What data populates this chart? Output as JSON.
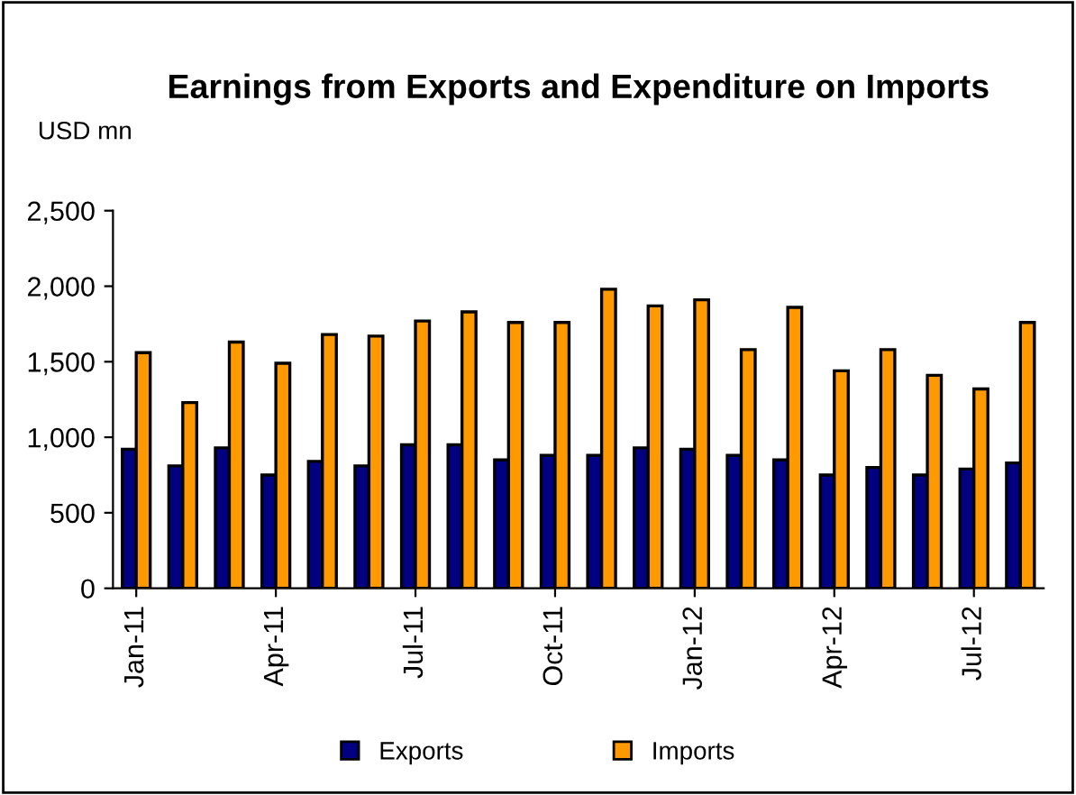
{
  "chart_data": {
    "type": "bar",
    "title": "Earnings from Exports and Expenditure on Imports",
    "ylabel": "USD mn",
    "categories": [
      "Jan-11",
      null,
      null,
      "Apr-11",
      null,
      null,
      "Jul-11",
      null,
      null,
      "Oct-11",
      null,
      null,
      "Jan-12",
      null,
      null,
      "Apr-12",
      null,
      null,
      "Jul-12",
      null
    ],
    "series": [
      {
        "name": "Exports",
        "color": "#000080",
        "values": [
          920,
          810,
          930,
          750,
          840,
          810,
          950,
          950,
          850,
          880,
          880,
          930,
          920,
          880,
          850,
          750,
          800,
          750,
          790,
          830
        ]
      },
      {
        "name": "Imports",
        "color": "#ff9900",
        "values": [
          1560,
          1230,
          1630,
          1490,
          1680,
          1670,
          1770,
          1830,
          1760,
          1760,
          1980,
          1870,
          1910,
          1580,
          1860,
          1440,
          1580,
          1410,
          1320,
          1760
        ]
      }
    ],
    "ylim": [
      0,
      2500
    ],
    "yticks": [
      {
        "value": 0,
        "label": "0"
      },
      {
        "value": 500,
        "label": "500"
      },
      {
        "value": 1000,
        "label": "1,000"
      },
      {
        "value": 1500,
        "label": "1,500"
      },
      {
        "value": 2000,
        "label": "2,000"
      },
      {
        "value": 2500,
        "label": "2,500"
      }
    ],
    "grid": false,
    "legend": "bottom"
  }
}
